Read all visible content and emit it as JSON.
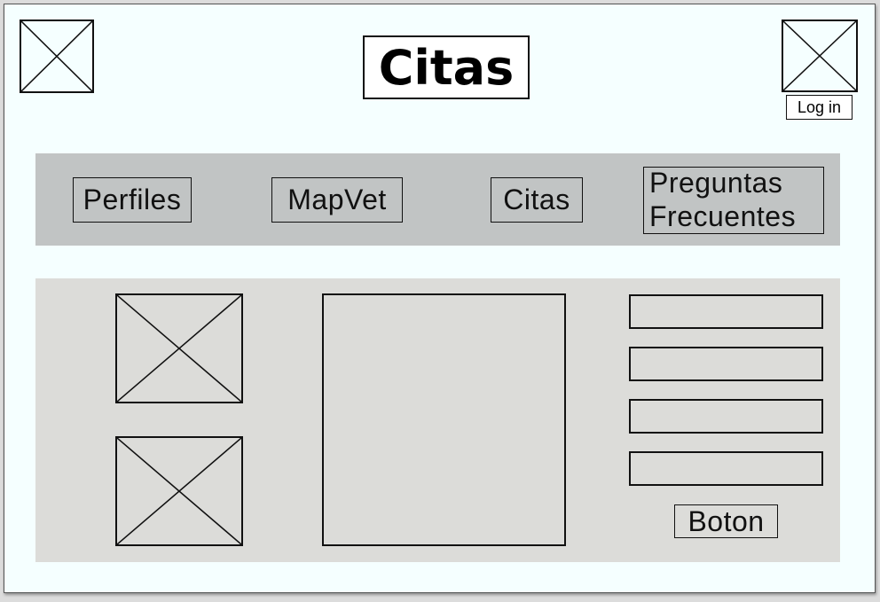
{
  "header": {
    "title": "Citas",
    "login_label": "Log in"
  },
  "nav": {
    "items": [
      {
        "label": "Perfiles"
      },
      {
        "label": "MapVet"
      },
      {
        "label": "Citas"
      },
      {
        "label_line1": "Preguntas",
        "label_line2": "Frecuentes"
      }
    ]
  },
  "content": {
    "button_label": "Boton"
  },
  "colors": {
    "page_background": "#f5ffff",
    "nav_background": "#c1c4c4",
    "content_background": "#dcdcd9"
  }
}
